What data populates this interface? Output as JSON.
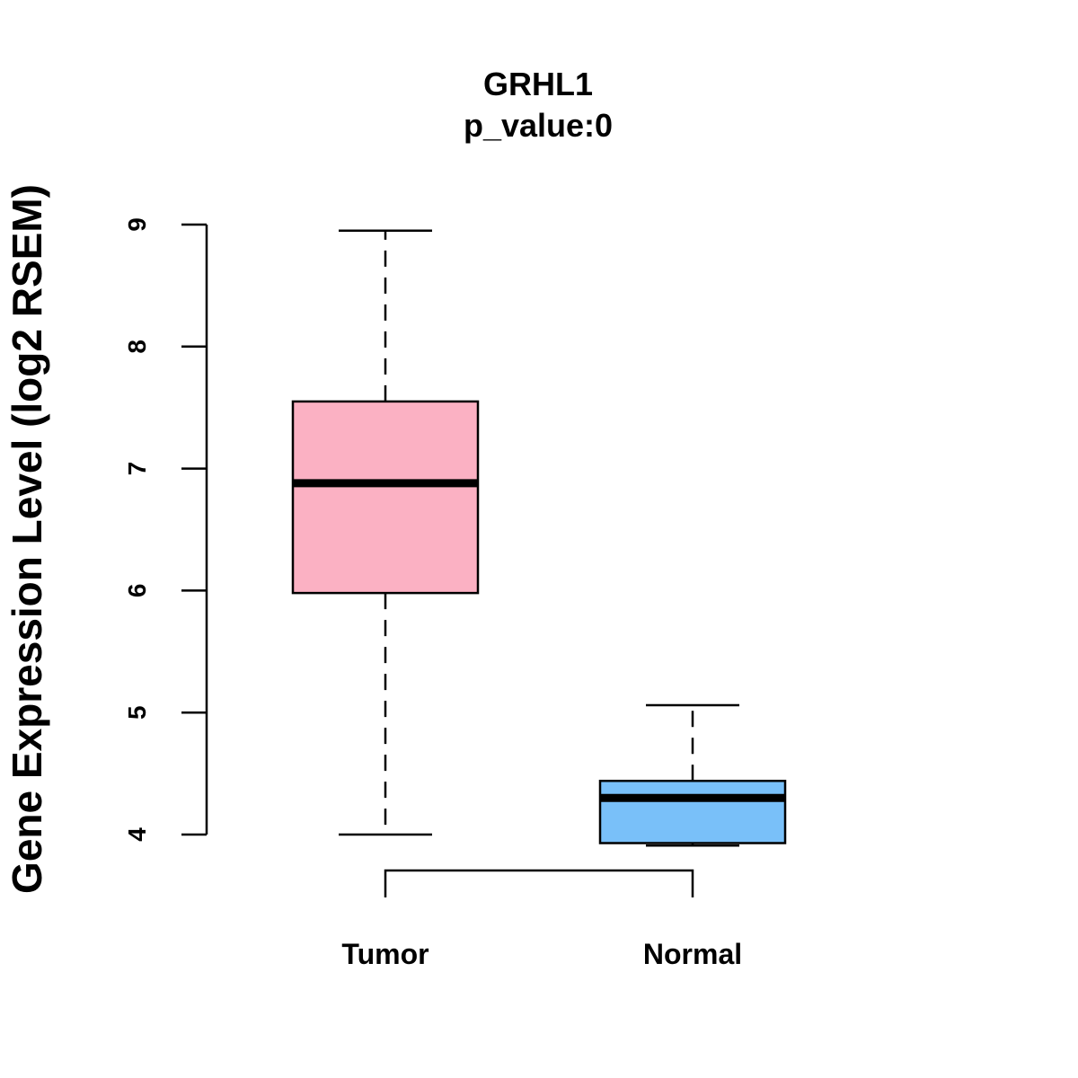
{
  "chart_data": {
    "type": "box",
    "title": "GRHL1",
    "subtitle": "p_value:0",
    "xlabel": "",
    "ylabel": "Gene Expression Level (log2 RSEM)",
    "ylim": [
      4,
      9
    ],
    "yticks": [
      4,
      5,
      6,
      7,
      8,
      9
    ],
    "grid": false,
    "legend": "none",
    "categories": [
      "Tumor",
      "Normal"
    ],
    "boxes": [
      {
        "name": "Tumor",
        "whisker_low": 4.0,
        "q1": 5.98,
        "median": 6.88,
        "q3": 7.55,
        "whisker_high": 8.95,
        "color": "#fbb1c3"
      },
      {
        "name": "Normal",
        "whisker_low": 3.91,
        "q1": 3.93,
        "median": 4.3,
        "q3": 4.44,
        "whisker_high": 5.06,
        "color": "#79c0f9"
      }
    ],
    "comparison_bracket": {
      "from": "Tumor",
      "to": "Normal"
    }
  }
}
